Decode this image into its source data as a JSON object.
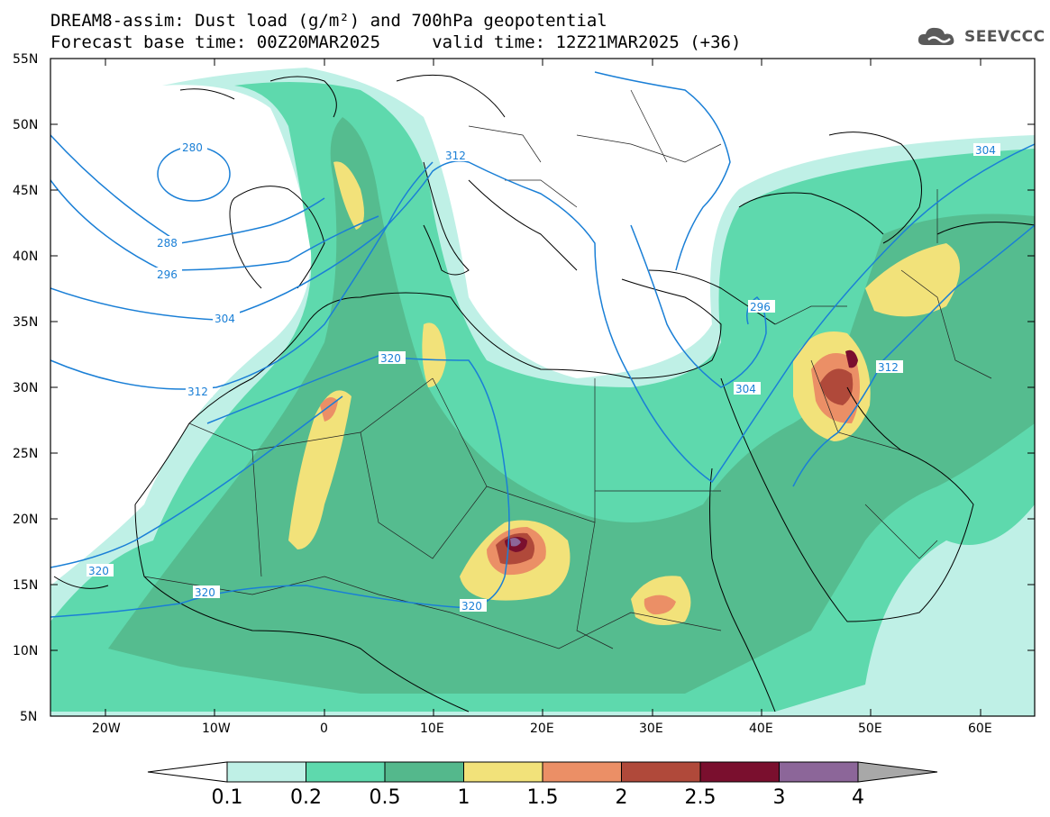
{
  "title": {
    "line1": "DREAM8-assim: Dust load (g/m²) and 700hPa geopotential",
    "line2": "Forecast base time: 00Z20MAR2025     valid time: 12Z21MAR2025 (+36)"
  },
  "logo": {
    "text": "SEEVCCC",
    "icon": "cloud-logo-icon"
  },
  "axes": {
    "lat_ticks": [
      "55N",
      "50N",
      "45N",
      "40N",
      "35N",
      "30N",
      "25N",
      "20N",
      "15N",
      "10N",
      "5N"
    ],
    "lon_ticks": [
      "20W",
      "10W",
      "0",
      "10E",
      "20E",
      "30E",
      "40E",
      "50E",
      "60E"
    ],
    "lat_range": [
      5,
      55
    ],
    "lon_range": [
      -25,
      65
    ]
  },
  "colorbar": {
    "labels": [
      "0.1",
      "0.2",
      "0.5",
      "1",
      "1.5",
      "2",
      "2.5",
      "3",
      "4"
    ],
    "colors": [
      "#bff0e6",
      "#5ed9ad",
      "#54b88c",
      "#f2e27a",
      "#eb8f66",
      "#b0493a",
      "#7a0f2e",
      "#8c6699",
      "#a8a8a8"
    ]
  },
  "isolines": {
    "color": "#1a7fd6",
    "labels": [
      "280",
      "288",
      "296",
      "304",
      "312",
      "320",
      "312",
      "304",
      "296",
      "304",
      "312",
      "320",
      "320",
      "320"
    ]
  }
}
